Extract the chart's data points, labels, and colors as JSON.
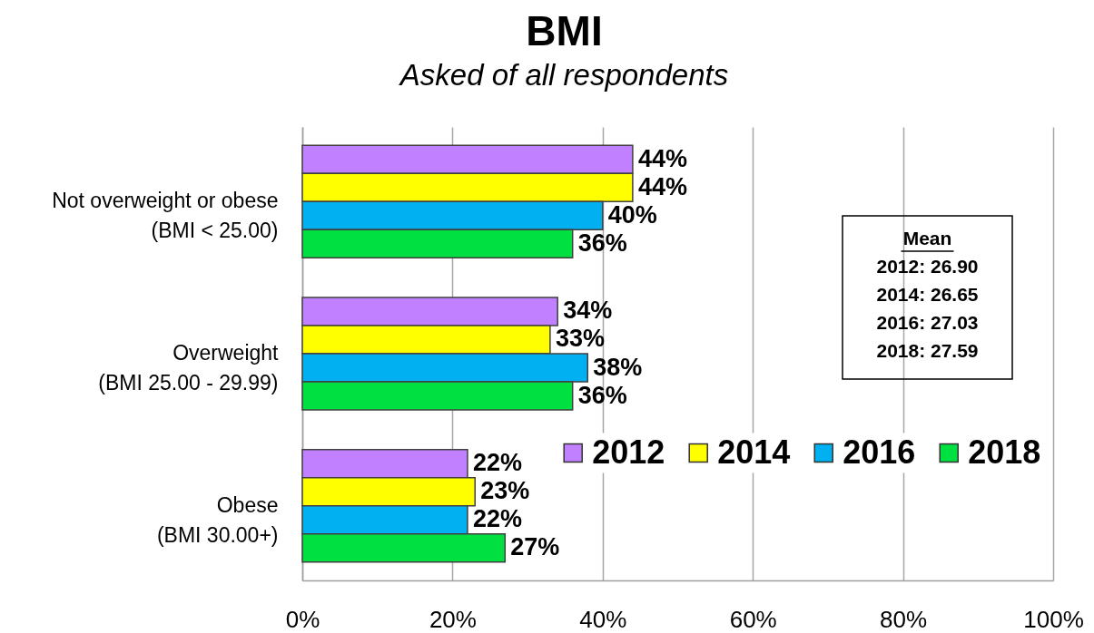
{
  "chart_data": {
    "type": "bar",
    "orientation": "horizontal",
    "title": "BMI",
    "subtitle": "Asked of all respondents",
    "categories": [
      "Not overweight or obese\n(BMI < 25.00)",
      "Overweight\n(BMI 25.00 - 29.99)",
      "Obese\n(BMI 30.00+)"
    ],
    "series": [
      {
        "name": "2012",
        "color": "#c080ff",
        "values": [
          44,
          34,
          22
        ],
        "value_labels": [
          "44%",
          "34%",
          "22%"
        ]
      },
      {
        "name": "2014",
        "color": "#ffff00",
        "values": [
          44,
          33,
          23
        ],
        "value_labels": [
          "44%",
          "33%",
          "23%"
        ]
      },
      {
        "name": "2016",
        "color": "#00b0f0",
        "values": [
          40,
          38,
          22
        ],
        "value_labels": [
          "40%",
          "38%",
          "22%"
        ]
      },
      {
        "name": "2018",
        "color": "#00e040",
        "values": [
          36,
          36,
          27
        ],
        "value_labels": [
          "36%",
          "36%",
          "27%"
        ]
      }
    ],
    "xlim": [
      0,
      100
    ],
    "xticks": [
      {
        "value": 0,
        "label": "0%"
      },
      {
        "value": 20,
        "label": "20%"
      },
      {
        "value": 40,
        "label": "40%"
      },
      {
        "value": 60,
        "label": "60%"
      },
      {
        "value": 80,
        "label": "80%"
      },
      {
        "value": 100,
        "label": "100%"
      }
    ],
    "grid": "x",
    "legend": "bottom right",
    "annotations": [
      "Mean",
      "2012: 26.90",
      "2014: 26.65",
      "2016: 27.03",
      "2018: 27.59"
    ]
  }
}
